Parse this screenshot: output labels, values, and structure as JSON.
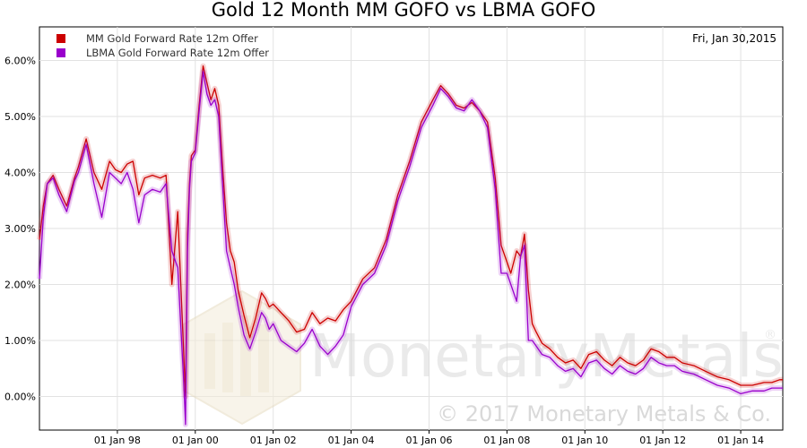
{
  "chart_data": {
    "type": "line",
    "title": "Gold 12 Month MM GOFO vs LBMA GOFO",
    "date_label": "Fri, Jan 30,2015",
    "ylim": [
      -0.6,
      6.6
    ],
    "y_ticks": [
      0,
      1,
      2,
      3,
      4,
      5,
      6
    ],
    "y_tick_labels": [
      "0.00%",
      "1.00%",
      "2.00%",
      "3.00%",
      "4.00%",
      "5.00%",
      "6.00%"
    ],
    "xlim": [
      1996.0,
      2015.08
    ],
    "x_ticks": [
      1998,
      2000,
      2002,
      2004,
      2006,
      2008,
      2010,
      2012,
      2014
    ],
    "x_tick_labels": [
      "01 Jan 98",
      "01 Jan 00",
      "01 Jan 02",
      "01 Jan 04",
      "01 Jan 06",
      "01 Jan 08",
      "01 Jan 10",
      "01 Jan 12",
      "01 Jan 14"
    ],
    "grid": true,
    "legend_position": "top-left",
    "series": [
      {
        "name": "MM Gold Forward Rate 12m Offer",
        "color": "#cc0000",
        "x": [
          1996.0,
          1996.1,
          1996.2,
          1996.35,
          1996.5,
          1996.7,
          1996.9,
          1997.0,
          1997.2,
          1997.4,
          1997.6,
          1997.8,
          1997.95,
          1998.1,
          1998.25,
          1998.4,
          1998.55,
          1998.7,
          1998.9,
          1999.1,
          1999.25,
          1999.4,
          1999.55,
          1999.7,
          1999.75,
          1999.8,
          1999.85,
          1999.9,
          2000.0,
          2000.1,
          2000.2,
          2000.3,
          2000.4,
          2000.5,
          2000.6,
          2000.7,
          2000.8,
          2000.9,
          2001.0,
          2001.1,
          2001.25,
          2001.4,
          2001.55,
          2001.7,
          2001.8,
          2001.9,
          2002.0,
          2002.2,
          2002.4,
          2002.6,
          2002.8,
          2003.0,
          2003.2,
          2003.4,
          2003.6,
          2003.8,
          2004.0,
          2004.3,
          2004.6,
          2004.9,
          2005.2,
          2005.5,
          2005.8,
          2006.1,
          2006.3,
          2006.5,
          2006.7,
          2006.9,
          2007.1,
          2007.3,
          2007.5,
          2007.7,
          2007.85,
          2008.0,
          2008.1,
          2008.25,
          2008.35,
          2008.45,
          2008.55,
          2008.65,
          2008.75,
          2008.9,
          2009.1,
          2009.3,
          2009.5,
          2009.7,
          2009.9,
          2010.1,
          2010.3,
          2010.5,
          2010.7,
          2010.9,
          2011.1,
          2011.3,
          2011.5,
          2011.7,
          2011.9,
          2012.1,
          2012.3,
          2012.5,
          2012.8,
          2013.1,
          2013.4,
          2013.7,
          2014.0,
          2014.3,
          2014.6,
          2014.8,
          2015.0,
          2015.08
        ],
        "values": [
          2.8,
          3.4,
          3.8,
          3.95,
          3.7,
          3.4,
          3.9,
          4.1,
          4.6,
          4.0,
          3.7,
          4.2,
          4.05,
          4.0,
          4.15,
          4.2,
          3.6,
          3.9,
          3.95,
          3.9,
          3.95,
          2.0,
          3.3,
          0.8,
          0.0,
          2.9,
          3.8,
          4.3,
          4.4,
          5.2,
          5.9,
          5.6,
          5.3,
          5.5,
          5.2,
          4.1,
          3.1,
          2.6,
          2.4,
          1.9,
          1.45,
          1.05,
          1.4,
          1.85,
          1.75,
          1.6,
          1.65,
          1.5,
          1.35,
          1.15,
          1.2,
          1.5,
          1.3,
          1.4,
          1.35,
          1.55,
          1.7,
          2.1,
          2.3,
          2.8,
          3.6,
          4.2,
          4.9,
          5.3,
          5.55,
          5.4,
          5.2,
          5.15,
          5.25,
          5.1,
          4.9,
          3.9,
          2.7,
          2.4,
          2.2,
          2.6,
          2.5,
          2.9,
          1.9,
          1.3,
          1.15,
          0.95,
          0.85,
          0.7,
          0.6,
          0.65,
          0.5,
          0.75,
          0.8,
          0.65,
          0.55,
          0.7,
          0.6,
          0.55,
          0.65,
          0.85,
          0.8,
          0.7,
          0.7,
          0.6,
          0.55,
          0.45,
          0.35,
          0.3,
          0.2,
          0.2,
          0.25,
          0.25,
          0.3,
          0.3
        ]
      },
      {
        "name": "LBMA Gold Forward Rate 12m Offer",
        "color": "#9900cc",
        "x": [
          1996.0,
          1996.1,
          1996.2,
          1996.35,
          1996.5,
          1996.7,
          1996.9,
          1997.0,
          1997.2,
          1997.4,
          1997.6,
          1997.8,
          1997.95,
          1998.1,
          1998.25,
          1998.4,
          1998.55,
          1998.7,
          1998.9,
          1999.1,
          1999.25,
          1999.4,
          1999.55,
          1999.7,
          1999.75,
          1999.8,
          1999.85,
          1999.9,
          2000.0,
          2000.1,
          2000.2,
          2000.3,
          2000.4,
          2000.5,
          2000.6,
          2000.7,
          2000.8,
          2000.9,
          2001.0,
          2001.1,
          2001.25,
          2001.4,
          2001.55,
          2001.7,
          2001.8,
          2001.9,
          2002.0,
          2002.2,
          2002.4,
          2002.6,
          2002.8,
          2003.0,
          2003.2,
          2003.4,
          2003.6,
          2003.8,
          2004.0,
          2004.3,
          2004.6,
          2004.9,
          2005.2,
          2005.5,
          2005.8,
          2006.1,
          2006.3,
          2006.5,
          2006.7,
          2006.9,
          2007.1,
          2007.3,
          2007.5,
          2007.7,
          2007.85,
          2008.0,
          2008.1,
          2008.25,
          2008.35,
          2008.45,
          2008.55,
          2008.65,
          2008.75,
          2008.9,
          2009.1,
          2009.3,
          2009.5,
          2009.7,
          2009.9,
          2010.1,
          2010.3,
          2010.5,
          2010.7,
          2010.9,
          2011.1,
          2011.3,
          2011.5,
          2011.7,
          2011.9,
          2012.1,
          2012.3,
          2012.5,
          2012.8,
          2013.1,
          2013.4,
          2013.7,
          2014.0,
          2014.3,
          2014.6,
          2014.8,
          2015.0,
          2015.08
        ],
        "values": [
          2.1,
          3.2,
          3.8,
          3.9,
          3.6,
          3.3,
          3.85,
          4.0,
          4.5,
          3.8,
          3.2,
          4.0,
          3.9,
          3.8,
          4.0,
          3.7,
          3.1,
          3.6,
          3.7,
          3.65,
          3.8,
          2.6,
          2.3,
          0.3,
          -0.5,
          2.6,
          3.7,
          4.2,
          4.35,
          5.1,
          5.8,
          5.4,
          5.2,
          5.3,
          5.0,
          3.8,
          2.6,
          2.3,
          2.0,
          1.6,
          1.1,
          0.85,
          1.15,
          1.5,
          1.4,
          1.2,
          1.3,
          1.0,
          0.9,
          0.8,
          0.95,
          1.2,
          0.9,
          0.75,
          0.9,
          1.1,
          1.6,
          2.0,
          2.2,
          2.7,
          3.5,
          4.1,
          4.8,
          5.2,
          5.5,
          5.35,
          5.15,
          5.1,
          5.3,
          5.1,
          4.8,
          3.7,
          2.2,
          2.2,
          2.0,
          1.7,
          2.5,
          2.7,
          1.0,
          1.0,
          0.9,
          0.75,
          0.7,
          0.55,
          0.45,
          0.5,
          0.35,
          0.6,
          0.65,
          0.5,
          0.4,
          0.55,
          0.45,
          0.4,
          0.5,
          0.7,
          0.6,
          0.55,
          0.55,
          0.45,
          0.4,
          0.3,
          0.2,
          0.15,
          0.05,
          0.1,
          0.1,
          0.15,
          0.15,
          0.15
        ]
      }
    ]
  },
  "watermark": {
    "brand": "MonetaryMetals",
    "registered_mark": "®",
    "copyright": "© 2017 Monetary Metals & Co."
  }
}
